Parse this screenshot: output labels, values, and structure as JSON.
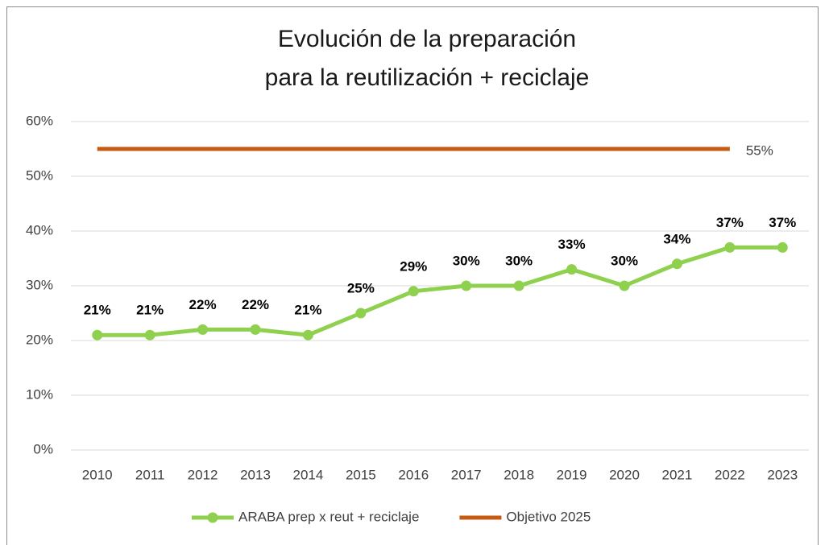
{
  "chart_data": {
    "type": "line",
    "title": [
      "Evolución de la preparación",
      "para la reutilización + reciclaje"
    ],
    "categories": [
      "2010",
      "2011",
      "2012",
      "2013",
      "2014",
      "2015",
      "2016",
      "2017",
      "2018",
      "2019",
      "2020",
      "2021",
      "2022",
      "2023"
    ],
    "series": [
      {
        "name": "ARABA prep x reut + reciclaje",
        "color": "#8fd14f",
        "values": [
          21,
          21,
          22,
          22,
          21,
          25,
          29,
          30,
          30,
          33,
          30,
          34,
          37,
          37
        ],
        "value_labels": [
          "21%",
          "21%",
          "22%",
          "22%",
          "21%",
          "25%",
          "29%",
          "30%",
          "30%",
          "33%",
          "30%",
          "34%",
          "37%",
          "37%"
        ]
      },
      {
        "name": "Objetivo 2025",
        "color": "#c55a11",
        "values": [
          55,
          55,
          55,
          55,
          55,
          55,
          55,
          55,
          55,
          55,
          55,
          55,
          55,
          null
        ],
        "value_labels": [
          null,
          null,
          null,
          null,
          null,
          null,
          null,
          null,
          null,
          null,
          null,
          null,
          "55%",
          null
        ]
      }
    ],
    "ylim": [
      0,
      60
    ],
    "yticks": [
      {
        "value": 0,
        "label": "0%"
      },
      {
        "value": 10,
        "label": "10%"
      },
      {
        "value": 20,
        "label": "20%"
      },
      {
        "value": 30,
        "label": "30%"
      },
      {
        "value": 40,
        "label": "40%"
      },
      {
        "value": 50,
        "label": "50%"
      },
      {
        "value": 60,
        "label": "60%"
      }
    ],
    "grid": true,
    "legend": "bottom"
  }
}
